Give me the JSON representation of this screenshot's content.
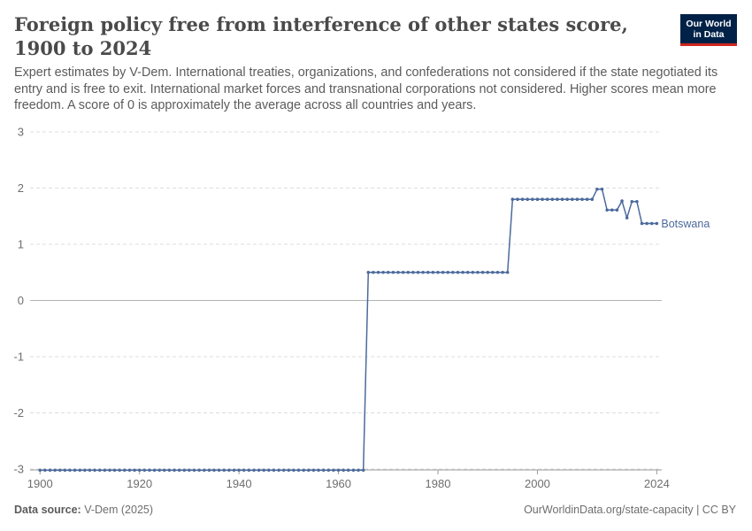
{
  "header": {
    "title": "Foreign policy free from interference of other states score, 1900 to 2024",
    "subtitle": "Expert estimates by V-Dem. International treaties, organizations, and confederations not considered if the state negotiated its entry and is free to exit. International market forces and transnational corporations not considered. Higher scores mean more freedom. A score of 0 is approximately the average across all countries and years.",
    "logo_line1": "Our World",
    "logo_line2": "in Data"
  },
  "footer": {
    "source_label": "Data source:",
    "source_value": "V-Dem (2025)",
    "url": "OurWorldinData.org/state-capacity | CC BY"
  },
  "colors": {
    "series": "#4c6a9c",
    "grid": "#dddddd",
    "zero_line": "#b3b3b3",
    "axis_text": "#6e6e6e"
  },
  "chart_data": {
    "type": "line",
    "title": "Foreign policy free from interference of other states score, 1900 to 2024",
    "xlabel": "",
    "ylabel": "",
    "xlim": [
      1898,
      2025
    ],
    "ylim": [
      -3,
      3
    ],
    "x_ticks": [
      "1900",
      "1920",
      "1940",
      "1960",
      "1980",
      "2000",
      "2024"
    ],
    "y_ticks": [
      "3",
      "2",
      "1",
      "0",
      "-1",
      "-2",
      "-3"
    ],
    "grid": true,
    "series": [
      {
        "name": "Botswana",
        "segments": [
          {
            "from": 1900,
            "to": 1965,
            "value": -3.02
          },
          {
            "from": 1966,
            "to": 1994,
            "value": 0.5
          },
          {
            "from": 1995,
            "to": 2011,
            "value": 1.8
          }
        ],
        "points": [
          {
            "x": 2012,
            "y": 1.98
          },
          {
            "x": 2013,
            "y": 1.98
          },
          {
            "x": 2014,
            "y": 1.61
          },
          {
            "x": 2015,
            "y": 1.61
          },
          {
            "x": 2016,
            "y": 1.61
          },
          {
            "x": 2017,
            "y": 1.77
          },
          {
            "x": 2018,
            "y": 1.47
          },
          {
            "x": 2019,
            "y": 1.76
          },
          {
            "x": 2020,
            "y": 1.76
          },
          {
            "x": 2021,
            "y": 1.37
          },
          {
            "x": 2022,
            "y": 1.37
          },
          {
            "x": 2023,
            "y": 1.37
          },
          {
            "x": 2024,
            "y": 1.37
          }
        ]
      }
    ]
  }
}
